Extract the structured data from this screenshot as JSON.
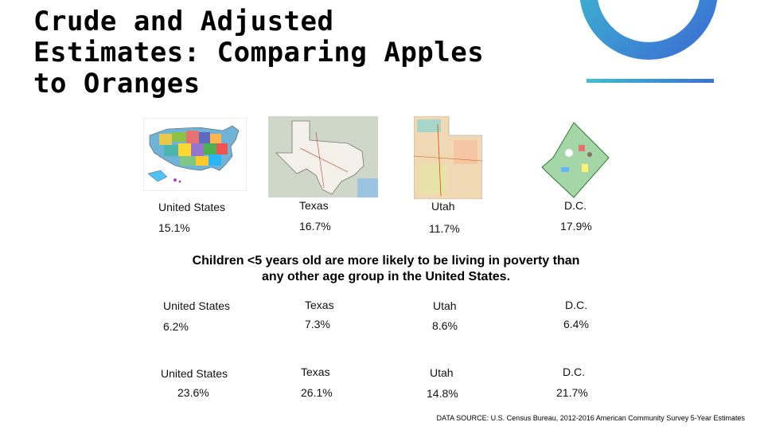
{
  "slide": {
    "title_lines": [
      "Crude and Adjusted",
      "Estimates: Comparing Apples",
      "to Oranges"
    ],
    "statement_lines": [
      "Children <5 years old are more likely to be living in poverty than",
      "any other age group in the United States."
    ],
    "source": "DATA SOURCE: U.S. Census Bureau, 2012-2016 American Community Survey 5-Year Estimates"
  },
  "rows": [
    {
      "cells": [
        {
          "name": "United States",
          "value": "15.1%"
        },
        {
          "name": "Texas",
          "value": "16.7%"
        },
        {
          "name": "Utah",
          "value": "11.7%"
        },
        {
          "name": "D.C.",
          "value": "17.9%"
        }
      ]
    },
    {
      "cells": [
        {
          "name": "United States",
          "value": "6.2%"
        },
        {
          "name": "Texas",
          "value": "7.3%"
        },
        {
          "name": "Utah",
          "value": "8.6%"
        },
        {
          "name": "D.C.",
          "value": "6.4%"
        }
      ]
    },
    {
      "cells": [
        {
          "name": "United States",
          "value": "23.6%"
        },
        {
          "name": "Texas",
          "value": "26.1%"
        },
        {
          "name": "Utah",
          "value": "14.8%"
        },
        {
          "name": "D.C.",
          "value": "21.7%"
        }
      ]
    }
  ],
  "colors": {
    "ring_start": "#3ec0cf",
    "ring_end": "#3b6fd4",
    "bar": "#3f7fd0"
  }
}
